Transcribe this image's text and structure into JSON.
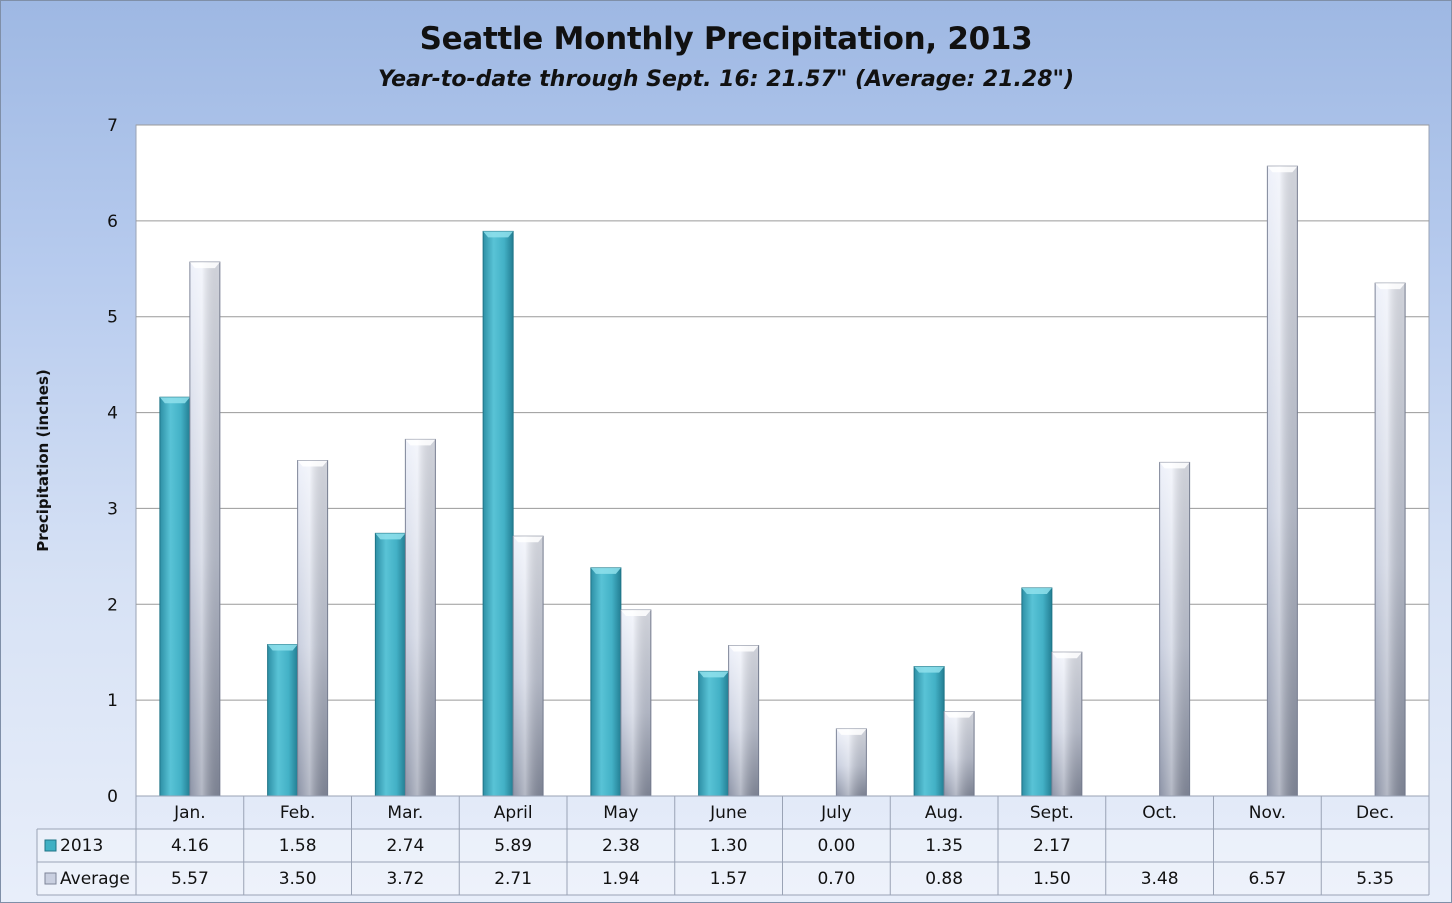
{
  "chart_data": {
    "type": "bar",
    "title": "Seattle Monthly Precipitation, 2013",
    "subtitle": "Year-to-date through Sept. 16: 21.57\" (Average: 21.28\")",
    "xlabel": "",
    "ylabel": "Precipitation (inches)",
    "ylim": [
      0,
      7
    ],
    "yticks": [
      "0",
      "1",
      "2",
      "3",
      "4",
      "5",
      "6",
      "7"
    ],
    "grid": true,
    "legend": "data-table",
    "categories": [
      "Jan.",
      "Feb.",
      "Mar.",
      "April",
      "May",
      "June",
      "July",
      "Aug.",
      "Sept.",
      "Oct.",
      "Nov.",
      "Dec."
    ],
    "series": [
      {
        "name": "2013",
        "color": "#3fb0c4",
        "values": [
          4.16,
          1.58,
          2.74,
          5.89,
          2.38,
          1.3,
          0.0,
          1.35,
          2.17,
          null,
          null,
          null
        ],
        "labels": [
          "4.16",
          "1.58",
          "2.74",
          "5.89",
          "2.38",
          "1.30",
          "0.00",
          "1.35",
          "2.17",
          "",
          "",
          ""
        ]
      },
      {
        "name": "Average",
        "color": "#c9cfe0",
        "values": [
          5.57,
          3.5,
          3.72,
          2.71,
          1.94,
          1.57,
          0.7,
          0.88,
          1.5,
          3.48,
          6.57,
          5.35
        ],
        "labels": [
          "5.57",
          "3.50",
          "3.72",
          "2.71",
          "1.94",
          "1.57",
          "0.70",
          "0.88",
          "1.50",
          "3.48",
          "6.57",
          "5.35"
        ]
      }
    ]
  }
}
